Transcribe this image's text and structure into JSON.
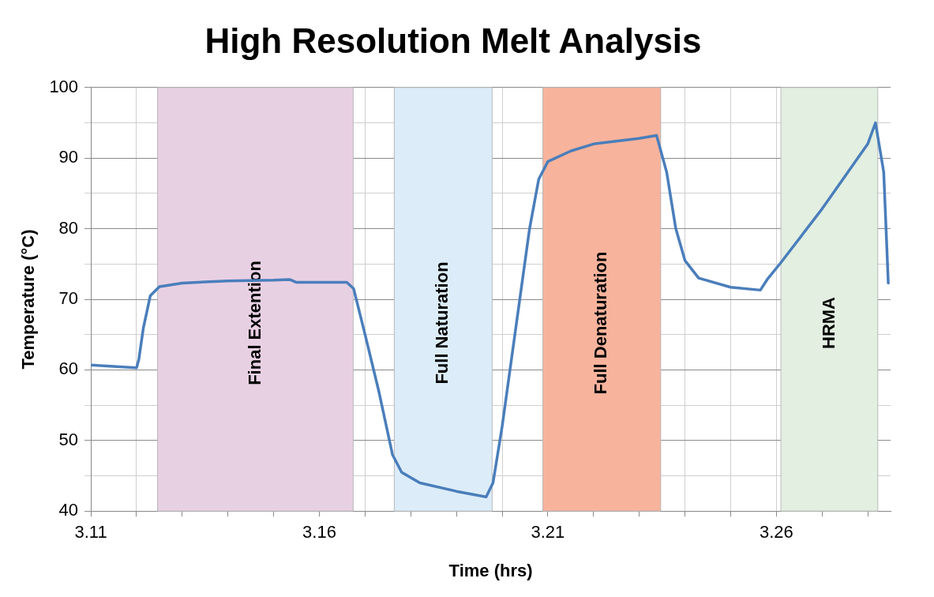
{
  "chart_data": {
    "type": "line",
    "title": "High Resolution Melt Analysis",
    "xlabel": "Time (hrs)",
    "ylabel": "Temperature (°C)",
    "x": [
      3.11,
      3.12,
      3.1205,
      3.1215,
      3.123,
      3.125,
      3.13,
      3.14,
      3.15,
      3.1535,
      3.155,
      3.166,
      3.1675,
      3.17,
      3.173,
      3.176,
      3.178,
      3.182,
      3.19,
      3.1965,
      3.198,
      3.2,
      3.203,
      3.206,
      3.208,
      3.21,
      3.215,
      3.22,
      3.23,
      3.2338,
      3.236,
      3.238,
      3.24,
      3.243,
      3.25,
      3.2565,
      3.258,
      3.261,
      3.27,
      3.28,
      3.2817,
      3.2835,
      3.2845
    ],
    "series": [
      {
        "color": "#4a7ebb",
        "values": [
          60.7,
          60.3,
          61.5,
          66,
          70.5,
          71.8,
          72.3,
          72.6,
          72.7,
          72.8,
          72.4,
          72.4,
          71.5,
          65,
          57,
          48,
          45.5,
          44,
          42.8,
          42,
          44,
          52,
          66,
          80,
          87,
          89.5,
          91,
          92,
          92.8,
          93.2,
          88,
          80,
          75.5,
          73,
          71.7,
          71.3,
          72.8,
          75.2,
          82.8,
          92,
          95,
          88,
          72.3
        ]
      }
    ],
    "xlim": [
      3.11,
      3.285
    ],
    "ylim": [
      40,
      100
    ],
    "xticks": [
      3.11,
      {
        "value": 3.12,
        "label": null
      },
      {
        "value": 3.13,
        "label": null
      },
      {
        "value": 3.14,
        "label": null
      },
      {
        "value": 3.15,
        "label": null
      },
      3.16,
      {
        "value": 3.17,
        "label": null
      },
      {
        "value": 3.18,
        "label": null
      },
      {
        "value": 3.19,
        "label": null
      },
      {
        "value": 3.2,
        "label": null
      },
      3.21,
      {
        "value": 3.22,
        "label": null
      },
      {
        "value": 3.23,
        "label": null
      },
      {
        "value": 3.24,
        "label": null
      },
      {
        "value": 3.25,
        "label": null
      },
      3.26,
      {
        "value": 3.27,
        "label": null
      },
      {
        "value": 3.28,
        "label": null
      }
    ],
    "yticks": [
      40,
      {
        "value": 45,
        "label": null
      },
      50,
      {
        "value": 55,
        "label": null
      },
      60,
      {
        "value": 65,
        "label": null
      },
      70,
      {
        "value": 75,
        "label": null
      },
      80,
      {
        "value": 85,
        "label": null
      },
      90,
      {
        "value": 95,
        "label": null
      },
      100
    ],
    "bands": [
      {
        "axis": "x",
        "from": 3.1246,
        "to": 3.1674,
        "label": "Final Extention",
        "color": "#e8d0e3"
      },
      {
        "axis": "x",
        "from": 3.1764,
        "to": 3.1978,
        "label": "Full Naturation",
        "color": "#dcedf9"
      },
      {
        "axis": "x",
        "from": 3.2089,
        "to": 3.2347,
        "label": "Full Denaturation",
        "color": "#f8b39c"
      },
      {
        "axis": "x",
        "from": 3.261,
        "to": 3.2822,
        "label": "HRMA",
        "color": "#e2efe1"
      }
    ],
    "grid": true,
    "legend": false,
    "marker": "none",
    "line_style": "solid"
  }
}
